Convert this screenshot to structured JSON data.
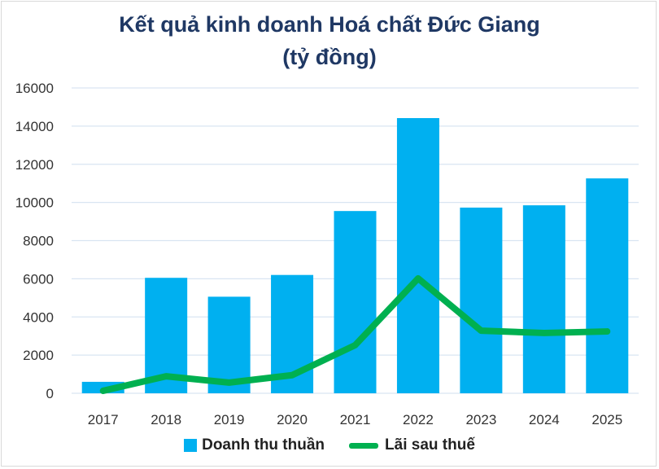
{
  "chart_data": {
    "type": "bar",
    "title": "Kết quả kinh doanh Hoá chất Đức Giang",
    "subtitle": "(tỷ đồng)",
    "categories": [
      "2017",
      "2018",
      "2019",
      "2020",
      "2021",
      "2022",
      "2023",
      "2024",
      "2025"
    ],
    "series": [
      {
        "name": "Doanh thu thuần",
        "type": "bar",
        "color": "#00b0f0",
        "values": [
          600,
          6050,
          5060,
          6200,
          9550,
          14420,
          9730,
          9850,
          11260
        ]
      },
      {
        "name": "Lãi sau thuế",
        "type": "line",
        "color": "#00b050",
        "values": [
          130,
          890,
          560,
          950,
          2520,
          6020,
          3280,
          3160,
          3240
        ]
      }
    ],
    "ylim": [
      0,
      16000
    ],
    "yticks": [
      "0",
      "2000",
      "4000",
      "6000",
      "8000",
      "10000",
      "12000",
      "14000",
      "16000"
    ],
    "grid": true,
    "legend": "bottom",
    "xlabel": "",
    "ylabel": ""
  }
}
